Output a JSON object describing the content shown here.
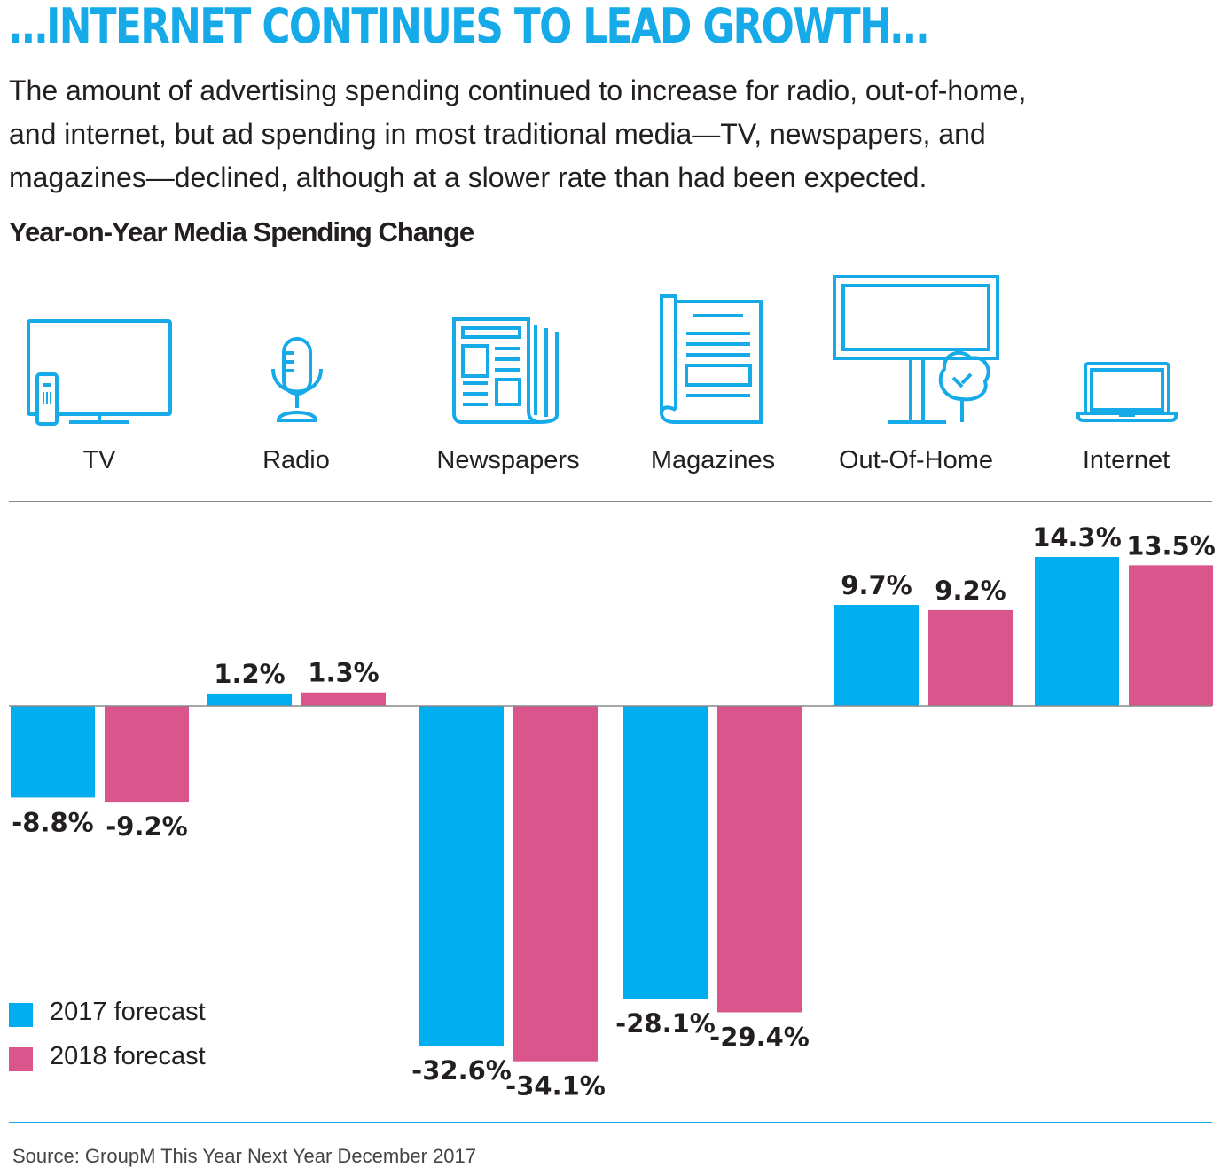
{
  "headline": "…INTERNET CONTINUES TO LEAD GROWTH…",
  "intro": {
    "line1": "The amount of advertising spending continued to increase for radio, out-of-home,",
    "line2": "and internet, but ad spending in most traditional media—TV, newspapers, and",
    "line3": "magazines—declined, although at a slower rate than had been expected."
  },
  "colors": {
    "accent": "#16aae8",
    "series2017": "#00adee",
    "series2018": "#d9558b",
    "text": "#231f20",
    "rule": "#888888"
  },
  "icons": [
    "tv-icon",
    "microphone-icon",
    "newspaper-icon",
    "magazine-icon",
    "billboard-icon",
    "laptop-icon"
  ],
  "chart_data": {
    "type": "bar",
    "title": "Year-on-Year Media Spending Change",
    "categories": [
      "TV",
      "Radio",
      "Newspapers",
      "Magazines",
      "Out-Of-Home",
      "Internet"
    ],
    "series": [
      {
        "name": "2017 forecast",
        "values": [
          -8.8,
          1.2,
          -32.6,
          -28.1,
          9.7,
          14.3
        ],
        "labels": [
          "-8.8%",
          "1.2%",
          "-32.6%",
          "-28.1%",
          "9.7%",
          "14.3%"
        ]
      },
      {
        "name": "2018 forecast",
        "values": [
          -9.2,
          1.3,
          -34.1,
          -29.4,
          9.2,
          13.5
        ],
        "labels": [
          "-9.2%",
          "1.3%",
          "-34.1%",
          "-29.4%",
          "9.2%",
          "13.5%"
        ]
      }
    ],
    "ylim": [
      -40,
      20
    ],
    "xlabel": "",
    "ylabel": "",
    "legend": "bottom-left"
  },
  "source": "Source: GroupM This Year Next Year December 2017"
}
